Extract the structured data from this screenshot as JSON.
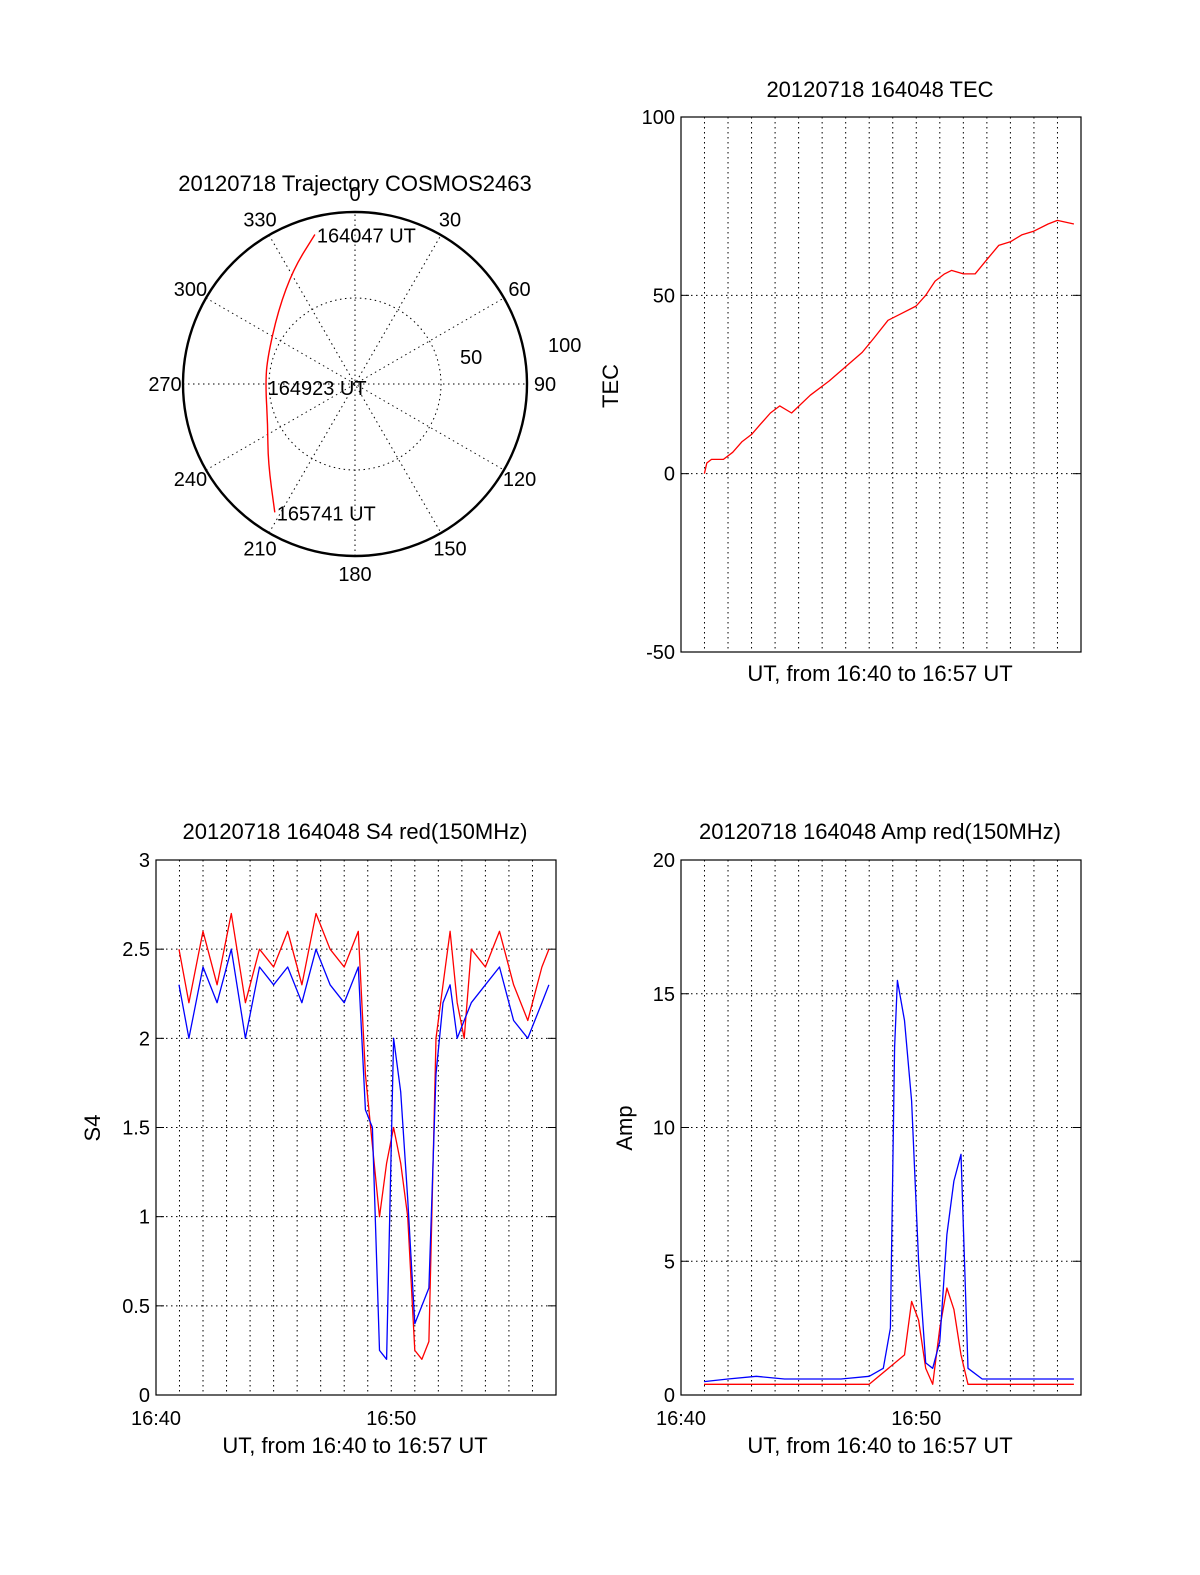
{
  "chart_data": [
    {
      "id": "trajectory",
      "type": "polar",
      "title": "20120718 Trajectory COSMOS2463",
      "angle_labels": [
        "0",
        "30",
        "60",
        "90",
        "120",
        "150",
        "180",
        "210",
        "240",
        "270",
        "300",
        "330"
      ],
      "radial_labels": [
        "50",
        "100"
      ],
      "rlim": [
        0,
        100
      ],
      "series": [
        {
          "color": "#ff0000",
          "points": [
            {
              "az": 345,
              "r": 90
            },
            {
              "az": 332,
              "r": 76
            },
            {
              "az": 314,
              "r": 62
            },
            {
              "az": 285,
              "r": 53
            },
            {
              "az": 268,
              "r": 52
            },
            {
              "az": 245,
              "r": 56
            },
            {
              "az": 228,
              "r": 68
            },
            {
              "az": 212,
              "r": 88
            }
          ]
        }
      ],
      "annotations": [
        {
          "text": "164047 UT",
          "az": 345,
          "r": 90
        },
        {
          "text": "164923 UT",
          "az": 268,
          "r": 52
        },
        {
          "text": "165741 UT",
          "az": 212,
          "r": 88
        }
      ]
    },
    {
      "id": "tec",
      "type": "line",
      "title": "20120718 164048 TEC",
      "xlabel": "UT, from 16:40 to 16:57 UT",
      "ylabel": "TEC",
      "ylim": [
        -50,
        100
      ],
      "yticks": [
        "-50",
        "0",
        "50",
        "100"
      ],
      "xlim": [
        16.6667,
        16.95
      ],
      "xticks": [],
      "grid": true,
      "series": [
        {
          "color": "#ff0000",
          "x": [
            16.6833,
            16.685,
            16.6883,
            16.6967,
            16.7033,
            16.71,
            16.7167,
            16.7233,
            16.73,
            16.7367,
            16.745,
            16.7583,
            16.7717,
            16.7833,
            16.795,
            16.8033,
            16.8133,
            16.8233,
            16.8333,
            16.84,
            16.8467,
            16.8533,
            16.8583,
            16.8667,
            16.875,
            16.8833,
            16.8917,
            16.9,
            16.9083,
            16.9167,
            16.9267,
            16.9333,
            16.945
          ],
          "y": [
            0,
            3,
            4,
            4,
            6,
            9,
            11,
            14,
            17,
            19,
            17,
            22,
            26,
            30,
            34,
            38,
            43,
            45,
            47,
            50,
            54,
            56,
            57,
            56,
            56,
            60,
            64,
            65,
            67,
            68,
            70,
            71,
            70
          ]
        }
      ]
    },
    {
      "id": "s4",
      "type": "line",
      "title": "20120718 164048 S4 red(150MHz)",
      "xlabel": "UT, from 16:40 to 16:57 UT",
      "ylabel": "S4",
      "ylim": [
        0,
        3
      ],
      "yticks": [
        "0",
        "0.5",
        "1",
        "1.5",
        "2",
        "2.5",
        "3"
      ],
      "xlim": [
        16.6667,
        16.95
      ],
      "xticks": [
        {
          "v": 16.6667,
          "label": "16:40"
        },
        {
          "v": 16.8333,
          "label": "16:50"
        }
      ],
      "grid": true,
      "series": [
        {
          "color": "#ff0000",
          "x": [
            16.683,
            16.69,
            16.7,
            16.71,
            16.72,
            16.73,
            16.74,
            16.75,
            16.76,
            16.77,
            16.78,
            16.79,
            16.8,
            16.81,
            16.815,
            16.82,
            16.825,
            16.83,
            16.835,
            16.84,
            16.845,
            16.85,
            16.855,
            16.86,
            16.865,
            16.87,
            16.875,
            16.88,
            16.885,
            16.89,
            16.9,
            16.91,
            16.92,
            16.93,
            16.94,
            16.945
          ],
          "y": [
            2.5,
            2.2,
            2.6,
            2.3,
            2.7,
            2.2,
            2.5,
            2.4,
            2.6,
            2.3,
            2.7,
            2.5,
            2.4,
            2.6,
            1.8,
            1.4,
            1.0,
            1.3,
            1.5,
            1.3,
            1.0,
            0.25,
            0.2,
            0.3,
            2.0,
            2.3,
            2.6,
            2.2,
            2.0,
            2.5,
            2.4,
            2.6,
            2.3,
            2.1,
            2.4,
            2.5
          ]
        },
        {
          "color": "#0000ff",
          "x": [
            16.683,
            16.69,
            16.7,
            16.71,
            16.72,
            16.73,
            16.74,
            16.75,
            16.76,
            16.77,
            16.78,
            16.79,
            16.8,
            16.81,
            16.815,
            16.82,
            16.825,
            16.83,
            16.835,
            16.84,
            16.845,
            16.85,
            16.855,
            16.86,
            16.865,
            16.87,
            16.875,
            16.88,
            16.885,
            16.89,
            16.9,
            16.91,
            16.92,
            16.93,
            16.94,
            16.945
          ],
          "y": [
            2.3,
            2.0,
            2.4,
            2.2,
            2.5,
            2.0,
            2.4,
            2.3,
            2.4,
            2.2,
            2.5,
            2.3,
            2.2,
            2.4,
            1.6,
            1.5,
            0.25,
            0.2,
            2.0,
            1.7,
            1.1,
            0.4,
            0.5,
            0.6,
            1.8,
            2.2,
            2.3,
            2.0,
            2.1,
            2.2,
            2.3,
            2.4,
            2.1,
            2.0,
            2.2,
            2.3
          ]
        }
      ]
    },
    {
      "id": "amp",
      "type": "line",
      "title": "20120718 164048 Amp red(150MHz)",
      "xlabel": "UT, from 16:40 to 16:57 UT",
      "ylabel": "Amp",
      "ylim": [
        0,
        20
      ],
      "yticks": [
        "0",
        "5",
        "10",
        "15",
        "20"
      ],
      "xlim": [
        16.6667,
        16.95
      ],
      "xticks": [
        {
          "v": 16.6667,
          "label": "16:40"
        },
        {
          "v": 16.8333,
          "label": "16:50"
        }
      ],
      "grid": true,
      "series": [
        {
          "color": "#ff0000",
          "x": [
            16.683,
            16.8,
            16.825,
            16.83,
            16.835,
            16.84,
            16.845,
            16.85,
            16.855,
            16.86,
            16.865,
            16.87,
            16.945
          ],
          "y": [
            0.4,
            0.4,
            1.5,
            3.5,
            2.8,
            1.0,
            0.4,
            2.5,
            4.0,
            3.2,
            1.5,
            0.4,
            0.4
          ]
        },
        {
          "color": "#0000ff",
          "x": [
            16.683,
            16.7,
            16.72,
            16.74,
            16.76,
            16.78,
            16.8,
            16.81,
            16.815,
            16.818,
            16.82,
            16.825,
            16.83,
            16.835,
            16.84,
            16.845,
            16.85,
            16.855,
            16.86,
            16.865,
            16.87,
            16.88,
            16.9,
            16.92,
            16.945
          ],
          "y": [
            0.5,
            0.6,
            0.7,
            0.6,
            0.6,
            0.6,
            0.7,
            1.0,
            2.5,
            13,
            15.5,
            14,
            11,
            5,
            1.2,
            1.0,
            2,
            6,
            8,
            9,
            1.0,
            0.6,
            0.6,
            0.6,
            0.6
          ]
        }
      ]
    }
  ]
}
